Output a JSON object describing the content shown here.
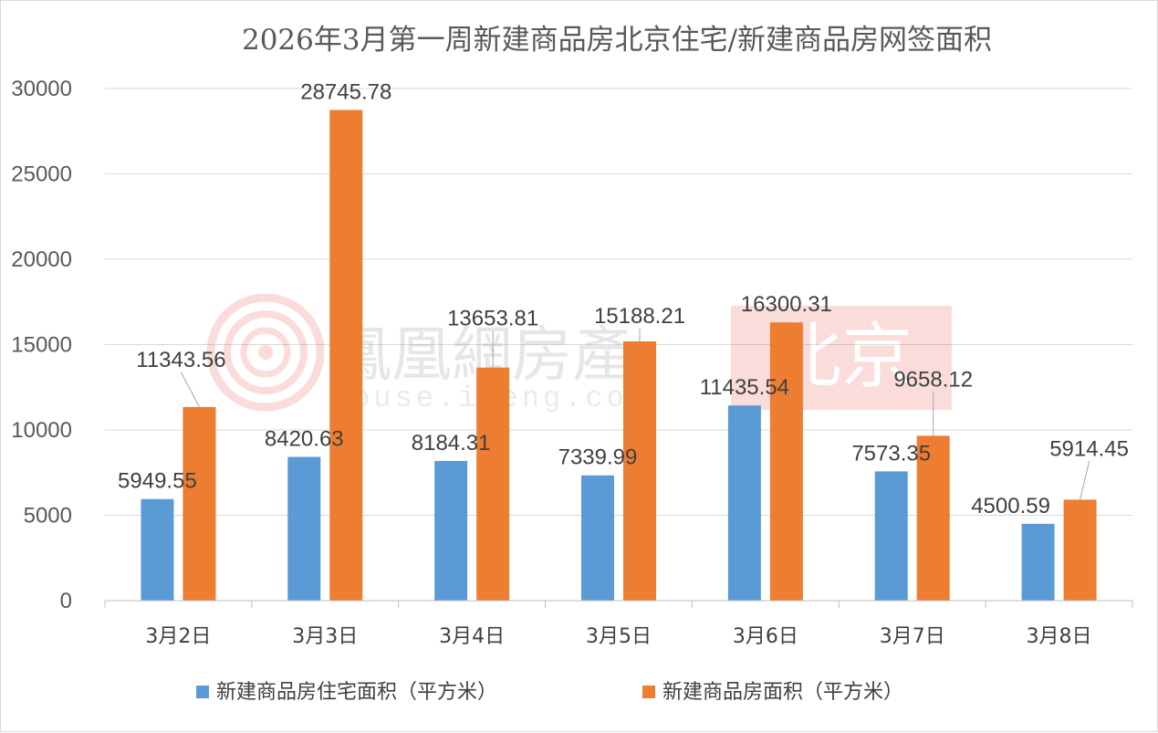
{
  "chart_data": {
    "type": "bar",
    "title": "2026年3月第一周新建商品房北京住宅/新建商品房网签面积",
    "xlabel": "",
    "ylabel": "",
    "categories": [
      "3月2日",
      "3月3日",
      "3月4日",
      "3月5日",
      "3月6日",
      "3月7日",
      "3月8日"
    ],
    "ylim": [
      0,
      30000
    ],
    "yticks": [
      0,
      5000,
      10000,
      15000,
      20000,
      25000,
      30000
    ],
    "grid": true,
    "legend_position": "bottom",
    "series": [
      {
        "name": "新建商品房住宅面积（平方米）",
        "color": "#5b9bd5",
        "values": [
          5949.55,
          8420.63,
          8184.31,
          7339.99,
          11435.54,
          7573.35,
          4500.59
        ],
        "labels": [
          "5949.55",
          "8420.63",
          "8184.31",
          "7339.99",
          "11435.54",
          "7573.35",
          "4500.59"
        ]
      },
      {
        "name": "新建商品房面积（平方米）",
        "color": "#ed7d31",
        "values": [
          11343.56,
          28745.78,
          13653.81,
          15188.21,
          16300.31,
          9658.12,
          5914.45
        ],
        "labels": [
          "11343.56",
          "28745.78",
          "13653.81",
          "15188.21",
          "16300.31",
          "9658.12",
          "5914.45"
        ]
      }
    ]
  },
  "watermark": {
    "logo_text": "鳳凰網房產",
    "url_text": "house.ifeng.com",
    "city_text": "北京",
    "logo_color": "#e8534a",
    "icon": "ifeng-phoenix-logo-icon"
  }
}
